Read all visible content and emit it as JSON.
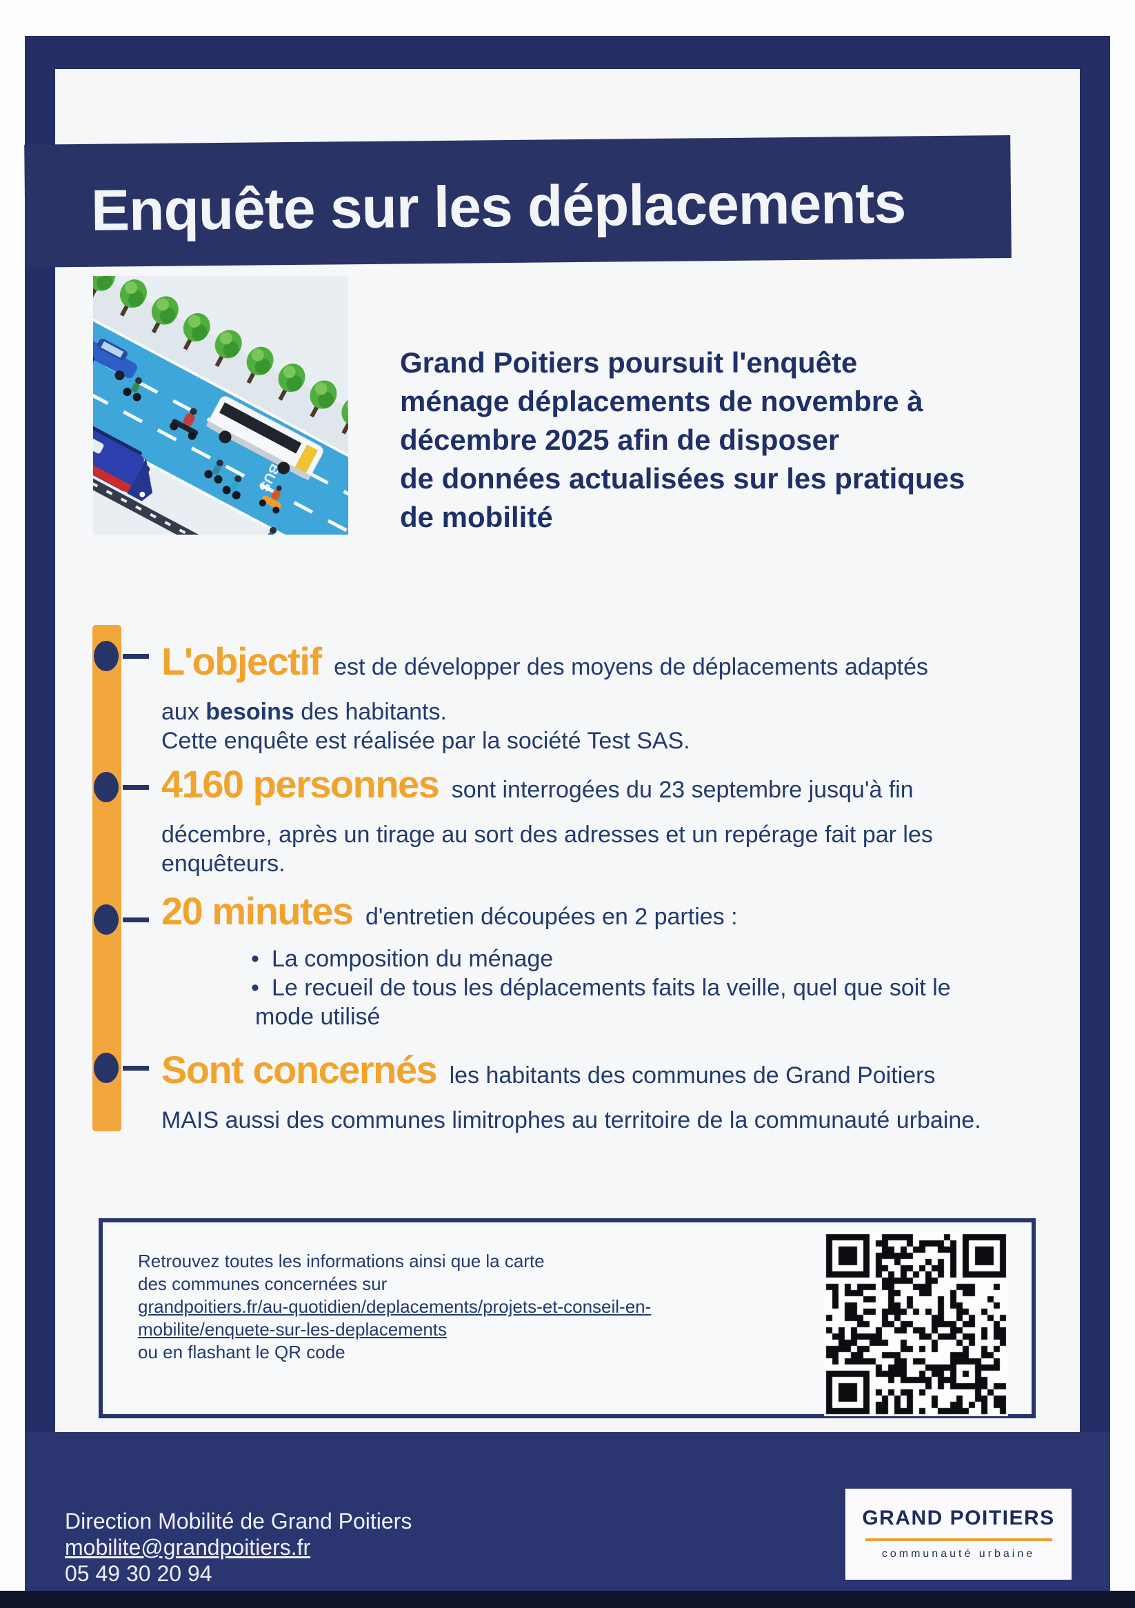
{
  "poster": {
    "title": "Enquête sur les déplacements",
    "intro": [
      "Grand Poitiers poursuit l'enquête",
      "ménage déplacements de novembre à",
      "décembre 2025 afin de disposer",
      "de données actualisées sur les pratiques",
      "de mobilité"
    ],
    "sections": [
      {
        "heading": "L'objectif",
        "lead": "est de développer des moyens de déplacements adaptés",
        "line2_pre": "aux ",
        "line2_bold": "besoins",
        "line2_post": " des habitants.",
        "line3": "Cette enquête est réalisée par la société Test SAS."
      },
      {
        "heading": "4160 personnes",
        "lead": "sont interrogées du 23 septembre jusqu'à fin",
        "line2": "décembre, après un tirage au sort des adresses et un repérage fait par les",
        "line3": "enquêteurs."
      },
      {
        "heading": "20 minutes",
        "lead": "d'entretien découpées en 2 parties :",
        "bullet1": "La composition du ménage",
        "bullet2a": "Le recueil de tous les déplacements faits la veille, quel que soit le",
        "bullet2b": "mode utilisé"
      },
      {
        "heading": "Sont concernés",
        "lead": "les habitants des communes de Grand Poitiers",
        "line2": "MAIS aussi des communes limitrophes au territoire de la communauté urbaine."
      }
    ],
    "info_box": {
      "line1": "Retrouvez toutes les informations ainsi que la carte",
      "line2": "des communes concernées sur",
      "link1": "grandpoitiers.fr/au-quotidien/deplacements/projets-et-conseil-en-",
      "link2": "mobilite/enquete-sur-les-deplacements",
      "line3": "ou en flashant le QR code"
    },
    "footer": {
      "department": "Direction Mobilité de Grand Poitiers",
      "email": "mobilite@grandpoitiers.fr",
      "phone": "05 49 30 20 94"
    },
    "logo": {
      "name": "GRAND POITIERS",
      "tagline": "communauté urbaine"
    },
    "illustration": {
      "road_marking": "BUS"
    },
    "colors": {
      "navy_frame": "#232e66",
      "navy_banner": "#2a3366",
      "orange": "#f0a42e",
      "text_navy": "#223a6e"
    }
  }
}
